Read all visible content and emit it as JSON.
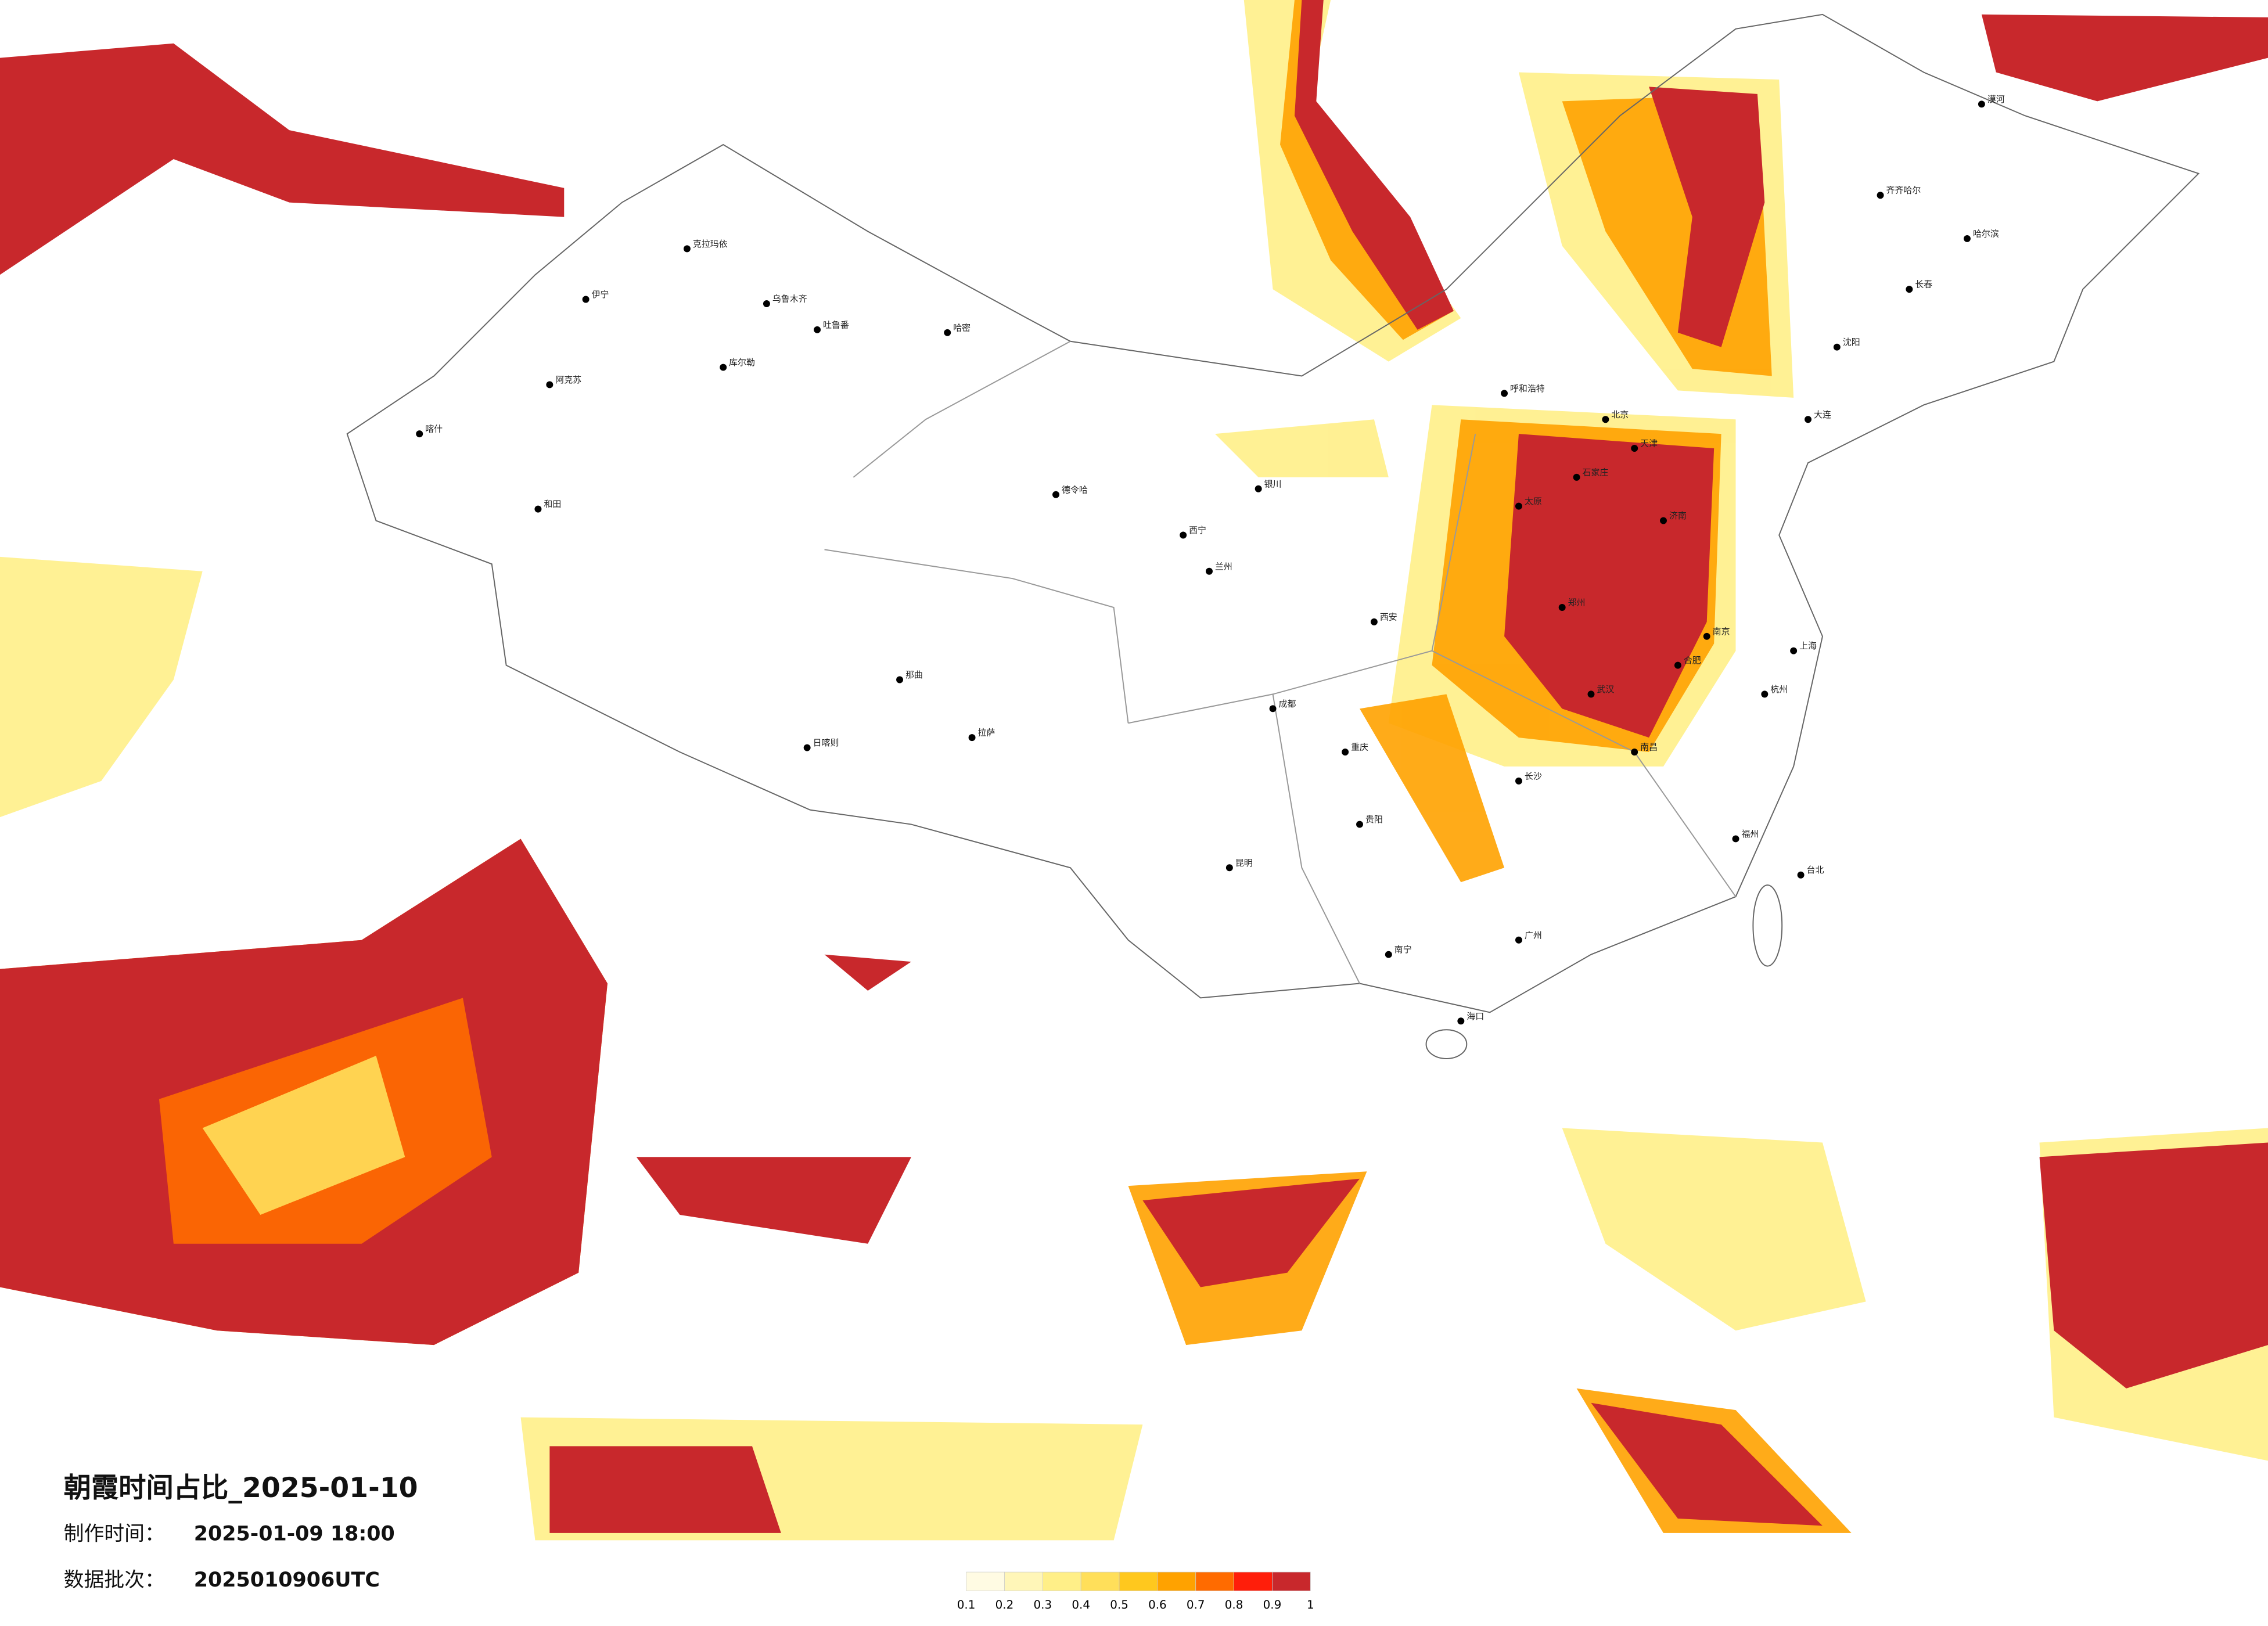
{
  "title": "朝霞时间占比_2025-01-10",
  "production_time": {
    "label": "制作时间：",
    "value": "2025-01-09 18:00"
  },
  "data_batch": {
    "label": "数据批次：",
    "value": "2025010906UTC"
  },
  "legend": {
    "ticks": [
      0.1,
      0.2,
      0.3,
      0.4,
      0.5,
      0.6,
      0.7,
      0.8,
      0.9,
      1
    ],
    "colors": [
      "#fffbe3",
      "#fff6b8",
      "#ffef88",
      "#ffdf5a",
      "#ffc81e",
      "#ffa200",
      "#ff6b00",
      "#ff1e0a",
      "#c8282c"
    ]
  },
  "cities": [
    "克拉玛依",
    "伊宁",
    "乌鲁木齐",
    "吐鲁番",
    "哈密",
    "库尔勒",
    "阿克苏",
    "喀什",
    "和田",
    "德令哈",
    "拉萨",
    "日喀则",
    "那曲",
    "西宁",
    "兰州",
    "银川",
    "呼和浩特",
    "北京",
    "天津",
    "石家庄",
    "太原",
    "济南",
    "郑州",
    "西安",
    "成都",
    "重庆",
    "贵阳",
    "昆明",
    "南宁",
    "广州",
    "长沙",
    "武汉",
    "南京",
    "上海",
    "杭州",
    "福州",
    "台北",
    "南昌",
    "合肥",
    "海口",
    "沈阳",
    "长春",
    "哈尔滨",
    "大连",
    "齐齐哈尔",
    "漠河"
  ]
}
